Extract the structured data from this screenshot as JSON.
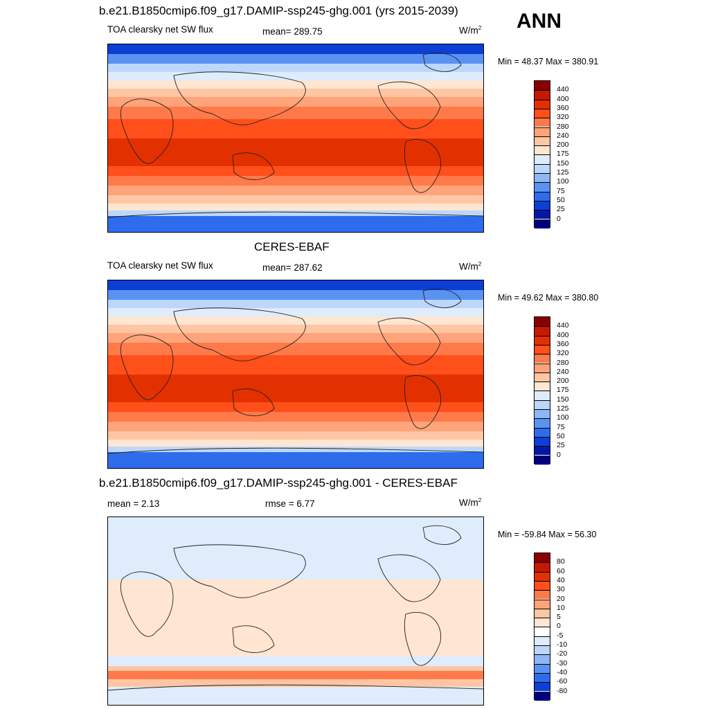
{
  "season": "ANN",
  "panels": [
    {
      "title": "b.e21.B1850cmip6.f09_g17.DAMIP-ssp245-ghg.001 (yrs 2015-2039)",
      "variable": "TOA clearsky net SW flux",
      "stat1": "mean= 289.75",
      "stat2": "",
      "units": "W/m",
      "units_sup": "2",
      "minmax": "Min =  48.37 Max = 380.91",
      "colorbar": {
        "labels": [
          "440",
          "400",
          "360",
          "320",
          "280",
          "240",
          "200",
          "175",
          "150",
          "125",
          "100",
          "75",
          "50",
          "25",
          "0"
        ],
        "colors": [
          "#8b0000",
          "#c41a00",
          "#e33000",
          "#ff4f1a",
          "#ff7a4a",
          "#ffa47a",
          "#ffc6a4",
          "#ffe6d2",
          "#deecfc",
          "#bcd7fa",
          "#8fb7f7",
          "#5a92f2",
          "#2e6cec",
          "#0b3fd5",
          "#0517a8",
          "#00007f"
        ]
      }
    },
    {
      "title": "CERES-EBAF",
      "variable": "TOA clearsky net SW flux",
      "stat1": "mean= 287.62",
      "stat2": "",
      "units": "W/m",
      "units_sup": "2",
      "minmax": "Min =  49.62 Max = 380.80",
      "colorbar": {
        "labels": [
          "440",
          "400",
          "360",
          "320",
          "280",
          "240",
          "200",
          "175",
          "150",
          "125",
          "100",
          "75",
          "50",
          "25",
          "0"
        ],
        "colors": [
          "#8b0000",
          "#c41a00",
          "#e33000",
          "#ff4f1a",
          "#ff7a4a",
          "#ffa47a",
          "#ffc6a4",
          "#ffe6d2",
          "#deecfc",
          "#bcd7fa",
          "#8fb7f7",
          "#5a92f2",
          "#2e6cec",
          "#0b3fd5",
          "#0517a8",
          "#00007f"
        ]
      }
    },
    {
      "title": "b.e21.B1850cmip6.f09_g17.DAMIP-ssp245-ghg.001 - CERES-EBAF",
      "variable": "",
      "stat1": "mean =   2.13",
      "stat2": "rmse =   6.77",
      "units": "W/m",
      "units_sup": "2",
      "minmax": "Min = -59.84 Max =  56.30",
      "colorbar": {
        "labels": [
          "80",
          "60",
          "40",
          "30",
          "20",
          "10",
          "5",
          "0",
          "-5",
          "-10",
          "-20",
          "-30",
          "-40",
          "-60",
          "-80"
        ],
        "colors": [
          "#8b0000",
          "#c41a00",
          "#e33000",
          "#ff4f1a",
          "#ff7a4a",
          "#ffa47a",
          "#ffc6a4",
          "#ffe6d2",
          "#ffffff",
          "#deecfc",
          "#bcd7fa",
          "#8fb7f7",
          "#5a92f2",
          "#2e6cec",
          "#0b3fd5",
          "#00007f"
        ]
      }
    }
  ]
}
